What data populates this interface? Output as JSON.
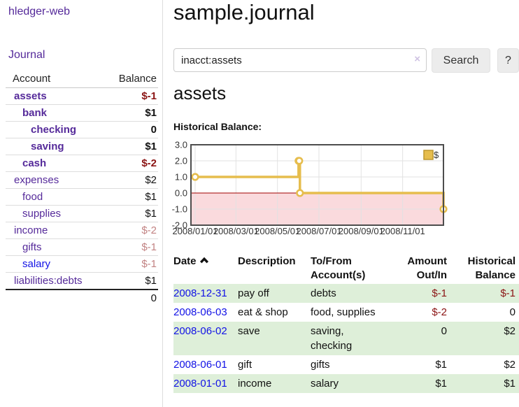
{
  "sidebar": {
    "brand": "hledger-web",
    "nav": {
      "journal": "Journal"
    },
    "accounts_table": {
      "headers": {
        "account": "Account",
        "balance": "Balance"
      },
      "rows": [
        {
          "name": "assets",
          "indent": 1,
          "bold": true,
          "balance": "$-1",
          "balance_color": "negative"
        },
        {
          "name": "bank",
          "indent": 2,
          "bold": true,
          "balance": "$1",
          "balance_color": "normal"
        },
        {
          "name": "checking",
          "indent": 3,
          "bold": true,
          "balance": "0",
          "balance_color": "normal"
        },
        {
          "name": "saving",
          "indent": 3,
          "bold": true,
          "balance": "$1",
          "balance_color": "normal"
        },
        {
          "name": "cash",
          "indent": 2,
          "bold": true,
          "balance": "$-2",
          "balance_color": "negative"
        },
        {
          "name": "expenses",
          "indent": 1,
          "bold": false,
          "balance": "$2",
          "balance_color": "normal"
        },
        {
          "name": "food",
          "indent": 2,
          "bold": false,
          "balance": "$1",
          "balance_color": "normal"
        },
        {
          "name": "supplies",
          "indent": 2,
          "bold": false,
          "balance": "$1",
          "balance_color": "normal"
        },
        {
          "name": "income",
          "indent": 1,
          "bold": false,
          "balance": "$-2",
          "balance_color": "muted-negative"
        },
        {
          "name": "gifts",
          "indent": 2,
          "bold": false,
          "balance": "$-1",
          "balance_color": "muted-negative"
        },
        {
          "name": "salary",
          "indent": 2,
          "bold": false,
          "balance": "$-1",
          "balance_color": "muted-negative",
          "link_color": "blue"
        },
        {
          "name": "liabilities:debts",
          "indent": 1,
          "bold": false,
          "balance": "$1",
          "balance_color": "normal"
        }
      ],
      "total": "0"
    }
  },
  "main": {
    "title": "sample.journal",
    "search": {
      "value": "inacct:assets",
      "clear_icon": "×",
      "button": "Search",
      "help_button": "?"
    },
    "account_heading": "assets",
    "chart_label": "Historical Balance:"
  },
  "chart_data": {
    "type": "line",
    "step": true,
    "title": "Historical Balance",
    "legend": "$",
    "legend_position": "top-right",
    "grid": true,
    "xlim": [
      "2008-01-01",
      "2008-12-31"
    ],
    "ylim": [
      -2,
      3
    ],
    "y_ticks": [
      {
        "v": 3,
        "label": "3.0"
      },
      {
        "v": 2,
        "label": "2.0"
      },
      {
        "v": 1,
        "label": "1.0"
      },
      {
        "v": 0,
        "label": "0.0"
      },
      {
        "v": -1,
        "label": "-1.0"
      },
      {
        "v": -2,
        "label": "-2.0"
      }
    ],
    "x_ticks": [
      {
        "d": "2008-01-01",
        "label": "2008/01/01"
      },
      {
        "d": "2008-03-01",
        "label": "2008/03/01"
      },
      {
        "d": "2008-05-01",
        "label": "2008/05/01"
      },
      {
        "d": "2008-07-01",
        "label": "2008/07/01"
      },
      {
        "d": "2008-09-01",
        "label": "2008/09/01"
      },
      {
        "d": "2008-11-01",
        "label": "2008/11/01"
      }
    ],
    "series": [
      {
        "name": "$",
        "points": [
          [
            "2008-01-01",
            1
          ],
          [
            "2008-06-01",
            2
          ],
          [
            "2008-06-02",
            2
          ],
          [
            "2008-06-03",
            0
          ],
          [
            "2008-12-31",
            -1
          ]
        ]
      }
    ],
    "negative_region_filled": true
  },
  "transactions": {
    "headers": {
      "date": "Date",
      "sort_icon": "chevron-up",
      "description": "Description",
      "accounts": "To/From Account(s)",
      "amount": "Amount Out/In",
      "balance": "Historical Balance"
    },
    "rows": [
      {
        "date": "2008-12-31",
        "description": "pay off",
        "accounts": "debts",
        "amount": "$-1",
        "amount_neg": true,
        "balance": "$-1",
        "balance_neg": true
      },
      {
        "date": "2008-06-03",
        "description": "eat & shop",
        "accounts": "food, supplies",
        "amount": "$-2",
        "amount_neg": true,
        "balance": "0",
        "balance_neg": false
      },
      {
        "date": "2008-06-02",
        "description": "save",
        "accounts": "saving, checking",
        "amount": "0",
        "amount_neg": false,
        "balance": "$2",
        "balance_neg": false
      },
      {
        "date": "2008-06-01",
        "description": "gift",
        "accounts": "gifts",
        "amount": "$1",
        "amount_neg": false,
        "balance": "$2",
        "balance_neg": false
      },
      {
        "date": "2008-01-01",
        "description": "income",
        "accounts": "salary",
        "amount": "$1",
        "amount_neg": false,
        "balance": "$1",
        "balance_neg": false
      }
    ]
  },
  "colors": {
    "accent_purple": "#552a9a",
    "link_blue": "#1212e6",
    "negative_red": "#8b1414",
    "muted_negative_rose": "#c28383",
    "row_stripe_green": "#deefd9",
    "chart_line_gold": "#e6bd4d",
    "chart_legend_border": "#bd972f",
    "chart_negative_fill": "#fadadd",
    "chart_zero_line": "#a00000",
    "chart_grid": "#e2e2e2",
    "chart_border": "#4d4d4d"
  }
}
